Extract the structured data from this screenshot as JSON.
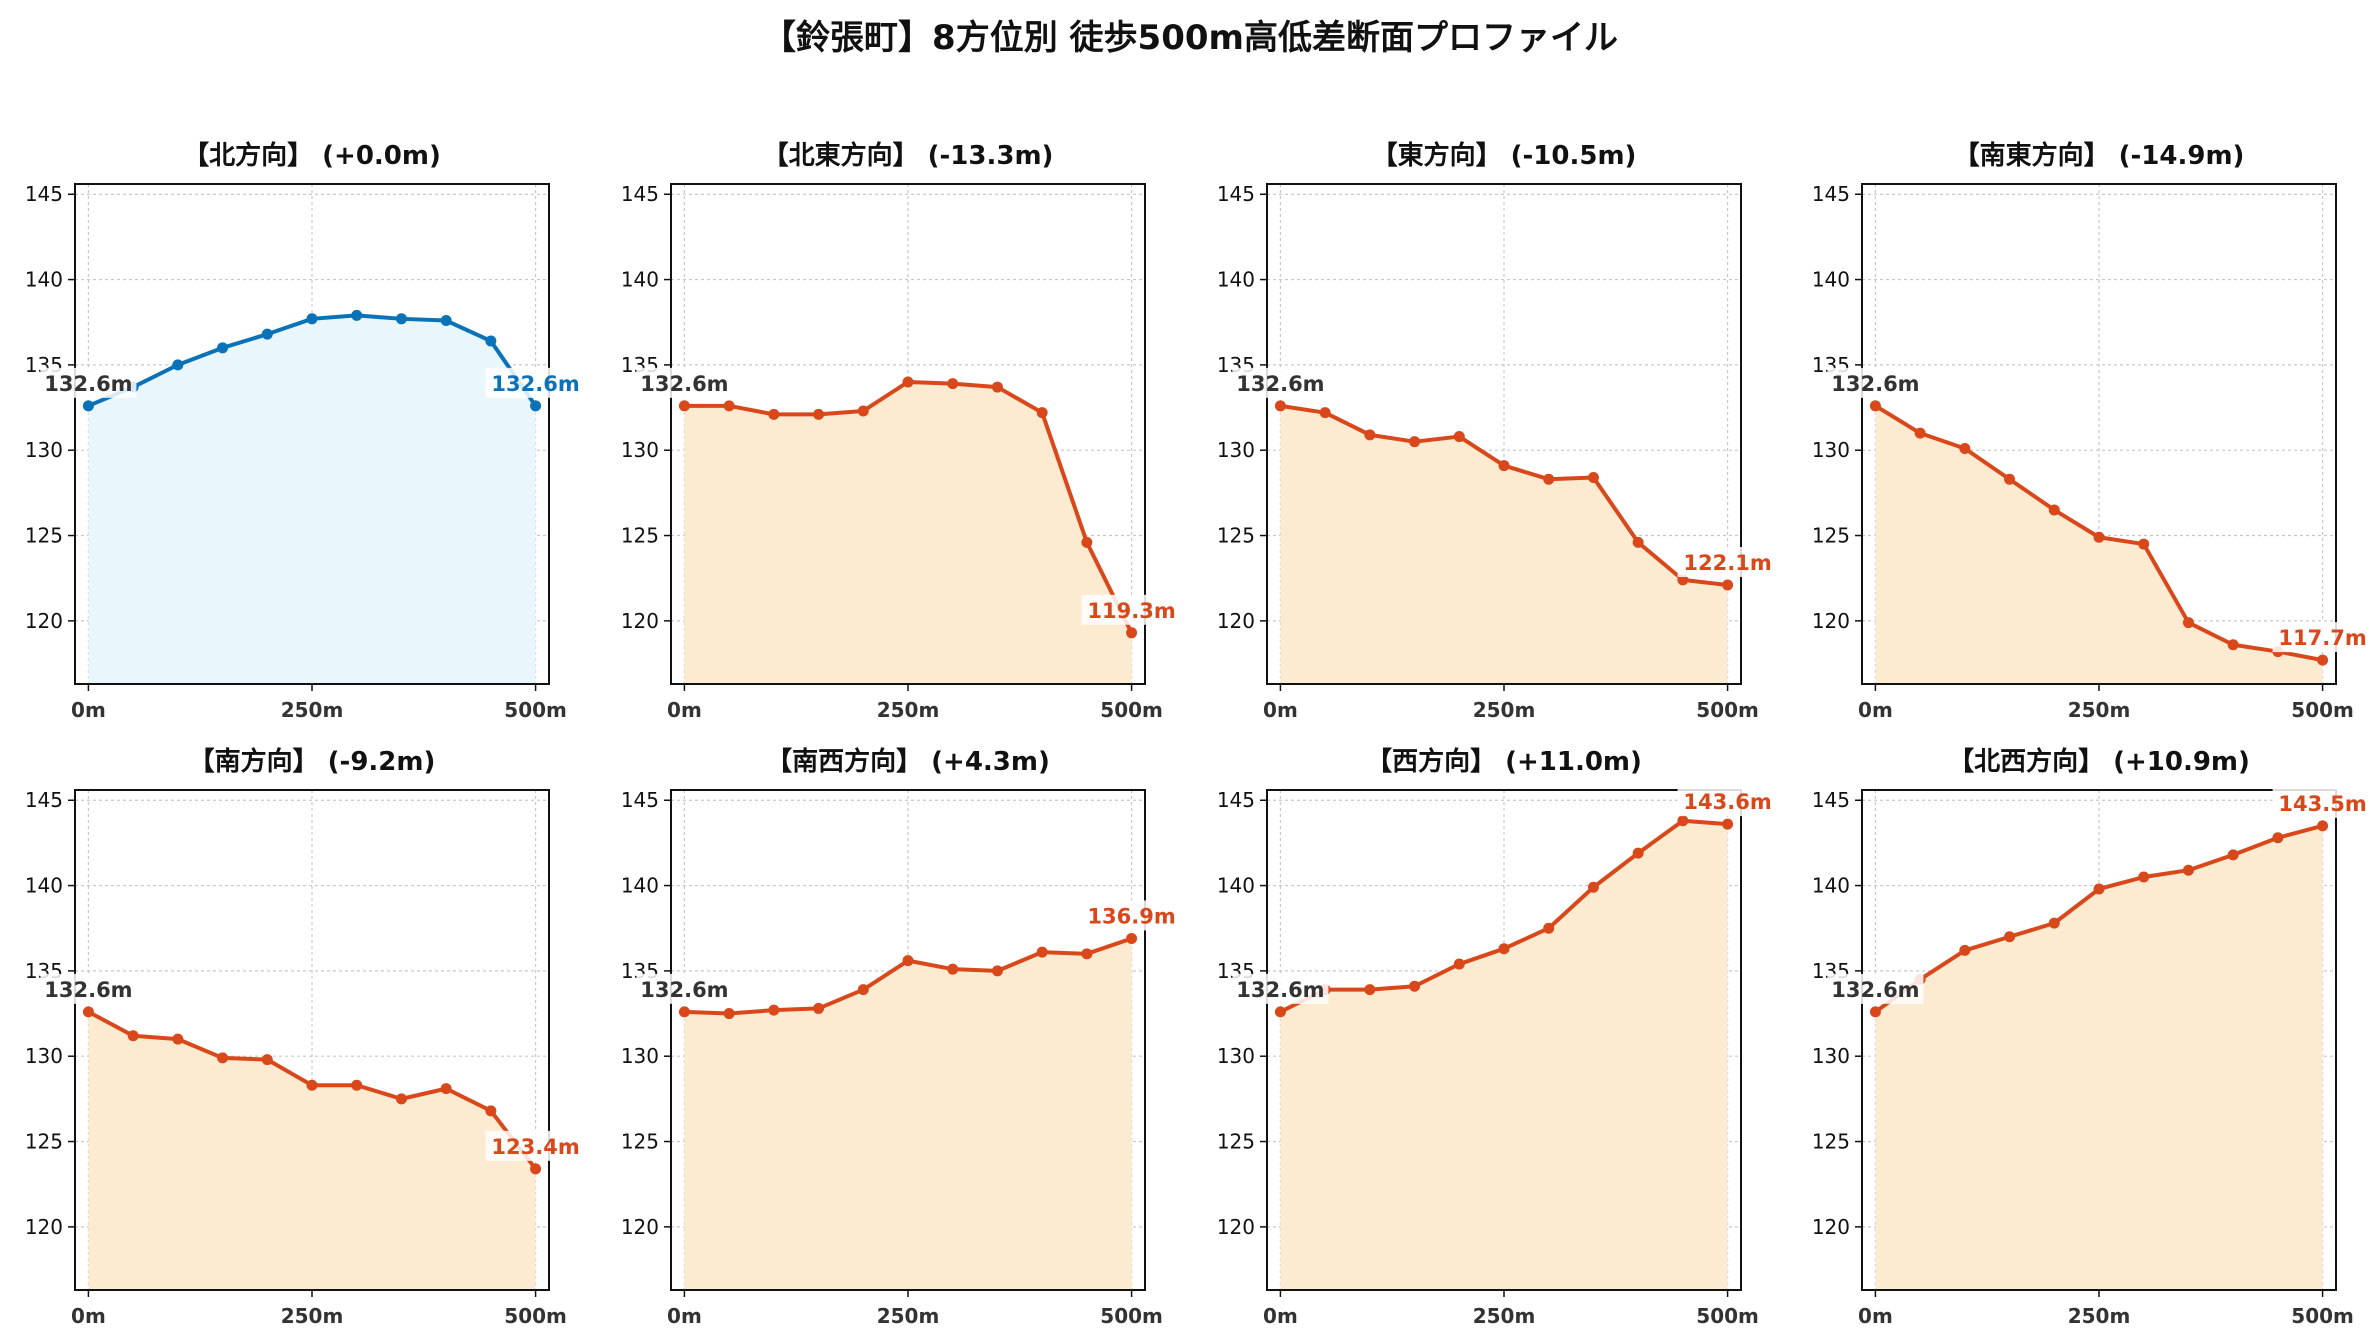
{
  "title": "【鈴張町】8方位別 徒歩500m高低差断面プロファイル",
  "colors": {
    "flat_line": "#0a72b8",
    "flat_fill": "#e9f6fb",
    "slope_line": "#d9481a",
    "slope_fill": "#fdebd1",
    "start_label": "#333333"
  },
  "chart_data": [
    {
      "type": "area",
      "title": "【北方向】 (+0.0m)",
      "x": [
        0,
        50,
        100,
        150,
        200,
        250,
        300,
        350,
        400,
        450,
        500
      ],
      "values": [
        132.6,
        133.7,
        135.0,
        136.0,
        136.8,
        137.7,
        137.9,
        137.7,
        137.6,
        136.4,
        132.6
      ],
      "start_label": "132.6m",
      "end_label": "132.6m",
      "ylim": [
        116.3,
        145.6
      ],
      "yticks": [
        "120",
        "125",
        "130",
        "135",
        "140",
        "145"
      ],
      "xticks": [
        "0m",
        "250m",
        "500m"
      ],
      "grid": true
    },
    {
      "type": "area",
      "title": "【北東方向】 (-13.3m)",
      "x": [
        0,
        50,
        100,
        150,
        200,
        250,
        300,
        350,
        400,
        450,
        500
      ],
      "values": [
        132.6,
        132.6,
        132.1,
        132.1,
        132.3,
        134.0,
        133.9,
        133.7,
        132.2,
        124.6,
        119.3
      ],
      "start_label": "132.6m",
      "end_label": "119.3m",
      "ylim": [
        116.3,
        145.6
      ],
      "yticks": [
        "120",
        "125",
        "130",
        "135",
        "140",
        "145"
      ],
      "xticks": [
        "0m",
        "250m",
        "500m"
      ],
      "grid": true
    },
    {
      "type": "area",
      "title": "【東方向】 (-10.5m)",
      "x": [
        0,
        50,
        100,
        150,
        200,
        250,
        300,
        350,
        400,
        450,
        500
      ],
      "values": [
        132.6,
        132.2,
        130.9,
        130.5,
        130.8,
        129.1,
        128.3,
        128.4,
        124.6,
        122.4,
        122.1
      ],
      "start_label": "132.6m",
      "end_label": "122.1m",
      "ylim": [
        116.3,
        145.6
      ],
      "yticks": [
        "120",
        "125",
        "130",
        "135",
        "140",
        "145"
      ],
      "xticks": [
        "0m",
        "250m",
        "500m"
      ],
      "grid": true
    },
    {
      "type": "area",
      "title": "【南東方向】 (-14.9m)",
      "x": [
        0,
        50,
        100,
        150,
        200,
        250,
        300,
        350,
        400,
        450,
        500
      ],
      "values": [
        132.6,
        131.0,
        130.1,
        128.3,
        126.5,
        124.9,
        124.5,
        119.9,
        118.6,
        118.2,
        117.7
      ],
      "start_label": "132.6m",
      "end_label": "117.7m",
      "ylim": [
        116.3,
        145.6
      ],
      "yticks": [
        "120",
        "125",
        "130",
        "135",
        "140",
        "145"
      ],
      "xticks": [
        "0m",
        "250m",
        "500m"
      ],
      "grid": true
    },
    {
      "type": "area",
      "title": "【南方向】 (-9.2m)",
      "x": [
        0,
        50,
        100,
        150,
        200,
        250,
        300,
        350,
        400,
        450,
        500
      ],
      "values": [
        132.6,
        131.2,
        131.0,
        129.9,
        129.8,
        128.3,
        128.3,
        127.5,
        128.1,
        126.8,
        123.4
      ],
      "start_label": "132.6m",
      "end_label": "123.4m",
      "ylim": [
        116.3,
        145.6
      ],
      "yticks": [
        "120",
        "125",
        "130",
        "135",
        "140",
        "145"
      ],
      "xticks": [
        "0m",
        "250m",
        "500m"
      ],
      "grid": true
    },
    {
      "type": "area",
      "title": "【南西方向】 (+4.3m)",
      "x": [
        0,
        50,
        100,
        150,
        200,
        250,
        300,
        350,
        400,
        450,
        500
      ],
      "values": [
        132.6,
        132.5,
        132.7,
        132.8,
        133.9,
        135.6,
        135.1,
        135.0,
        136.1,
        136.0,
        136.9
      ],
      "start_label": "132.6m",
      "end_label": "136.9m",
      "ylim": [
        116.3,
        145.6
      ],
      "yticks": [
        "120",
        "125",
        "130",
        "135",
        "140",
        "145"
      ],
      "xticks": [
        "0m",
        "250m",
        "500m"
      ],
      "grid": true
    },
    {
      "type": "area",
      "title": "【西方向】 (+11.0m)",
      "x": [
        0,
        50,
        100,
        150,
        200,
        250,
        300,
        350,
        400,
        450,
        500
      ],
      "values": [
        132.6,
        133.9,
        133.9,
        134.1,
        135.4,
        136.3,
        137.5,
        139.9,
        141.9,
        143.8,
        143.6
      ],
      "start_label": "132.6m",
      "end_label": "143.6m",
      "ylim": [
        116.3,
        145.6
      ],
      "yticks": [
        "120",
        "125",
        "130",
        "135",
        "140",
        "145"
      ],
      "xticks": [
        "0m",
        "250m",
        "500m"
      ],
      "grid": true
    },
    {
      "type": "area",
      "title": "【北西方向】 (+10.9m)",
      "x": [
        0,
        50,
        100,
        150,
        200,
        250,
        300,
        350,
        400,
        450,
        500
      ],
      "values": [
        132.6,
        134.5,
        136.2,
        137.0,
        137.8,
        139.8,
        140.5,
        140.9,
        141.8,
        142.8,
        143.5
      ],
      "start_label": "132.6m",
      "end_label": "143.5m",
      "ylim": [
        116.3,
        145.6
      ],
      "yticks": [
        "120",
        "125",
        "130",
        "135",
        "140",
        "145"
      ],
      "xticks": [
        "0m",
        "250m",
        "500m"
      ],
      "grid": true
    }
  ]
}
